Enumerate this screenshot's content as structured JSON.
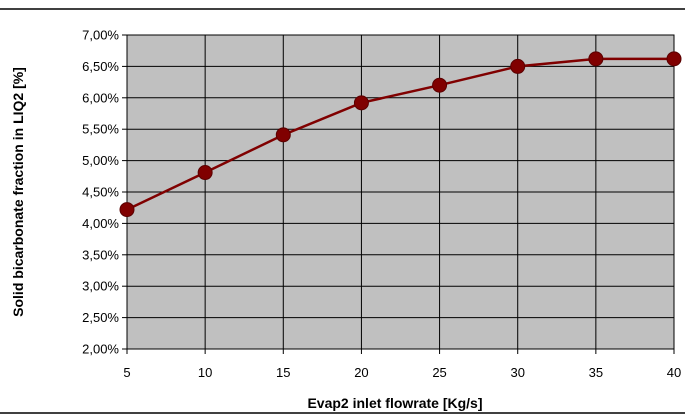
{
  "chart_data": {
    "type": "line",
    "xlabel": "Evap2 inlet flowrate  [Kg/s]",
    "ylabel": "Solid bicarbonate fraction in LIQ2 [%]",
    "xlim": [
      5,
      40
    ],
    "ylim": [
      2.0,
      7.0
    ],
    "x_ticks": [
      "5",
      "10",
      "15",
      "20",
      "25",
      "30",
      "35",
      "40"
    ],
    "y_ticks": [
      "2,00%",
      "2,50%",
      "3,00%",
      "3,50%",
      "4,00%",
      "4,50%",
      "5,00%",
      "5,50%",
      "6,00%",
      "6,50%",
      "7,00%"
    ],
    "grid": true,
    "plot_background": "#c0c0c0",
    "series": [
      {
        "color": "#800000",
        "x": [
          5,
          10,
          15,
          20,
          25,
          30,
          35,
          40
        ],
        "y": [
          4.22,
          4.81,
          5.41,
          5.92,
          6.2,
          6.5,
          6.62,
          6.62
        ]
      }
    ]
  }
}
